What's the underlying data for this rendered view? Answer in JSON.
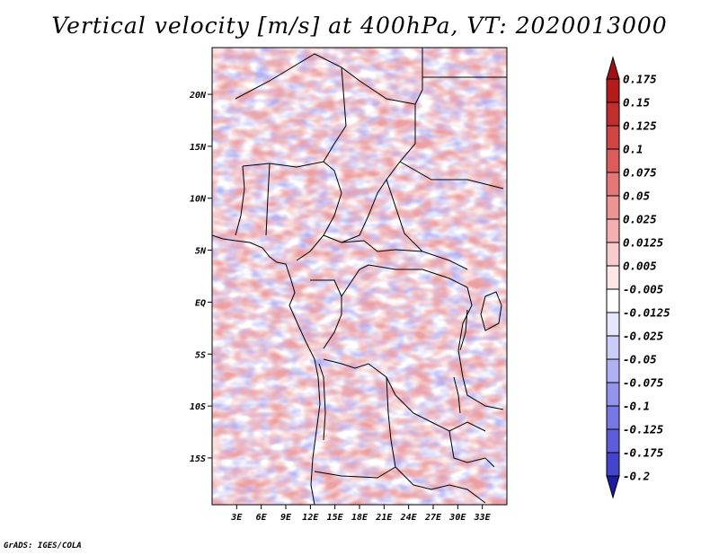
{
  "title": "Vertical velocity [m/s] at 400hPa, VT: 2020013000",
  "credit": "GrADS: IGES/COLA",
  "map": {
    "lat_range": [
      -19.5,
      24.5
    ],
    "lon_range": [
      0,
      36
    ],
    "lat_ticks": [
      {
        "value": 20,
        "label": "20N"
      },
      {
        "value": 15,
        "label": "15N"
      },
      {
        "value": 10,
        "label": "10N"
      },
      {
        "value": 5,
        "label": "5N"
      },
      {
        "value": 0,
        "label": "EQ"
      },
      {
        "value": -5,
        "label": "5S"
      },
      {
        "value": -10,
        "label": "10S"
      },
      {
        "value": -15,
        "label": "15S"
      }
    ],
    "lon_ticks": [
      {
        "value": 3,
        "label": "3E"
      },
      {
        "value": 6,
        "label": "6E"
      },
      {
        "value": 9,
        "label": "9E"
      },
      {
        "value": 12,
        "label": "12E"
      },
      {
        "value": 15,
        "label": "15E"
      },
      {
        "value": 18,
        "label": "18E"
      },
      {
        "value": 21,
        "label": "21E"
      },
      {
        "value": 24,
        "label": "24E"
      },
      {
        "value": 27,
        "label": "27E"
      },
      {
        "value": 30,
        "label": "30E"
      },
      {
        "value": 33,
        "label": "33E"
      }
    ]
  },
  "colorbar": {
    "levels": [
      {
        "label": "0.175",
        "color": "#b41c1c"
      },
      {
        "label": "0.15",
        "color": "#c22e2e"
      },
      {
        "label": "0.125",
        "color": "#d04444"
      },
      {
        "label": "0.1",
        "color": "#dc5c5c"
      },
      {
        "label": "0.075",
        "color": "#e47878"
      },
      {
        "label": "0.05",
        "color": "#ec9494"
      },
      {
        "label": "0.025",
        "color": "#f4b0b0"
      },
      {
        "label": "0.0125",
        "color": "#f8cccc"
      },
      {
        "label": "0.005",
        "color": "#fce6e6"
      },
      {
        "label": "-0.005",
        "color": "#ffffff"
      },
      {
        "label": "-0.0125",
        "color": "#e6e6fc"
      },
      {
        "label": "-0.025",
        "color": "#ccccf8"
      },
      {
        "label": "-0.05",
        "color": "#b0b0f4"
      },
      {
        "label": "-0.075",
        "color": "#9494ec"
      },
      {
        "label": "-0.1",
        "color": "#7878e4"
      },
      {
        "label": "-0.125",
        "color": "#5c5cdc"
      },
      {
        "label": "-0.175",
        "color": "#4444cc"
      },
      {
        "label": "-0.2",
        "color": "#2e2eb8"
      }
    ],
    "top_arrow_color": "#a01010",
    "bottom_arrow_color": "#1c1ca0"
  }
}
